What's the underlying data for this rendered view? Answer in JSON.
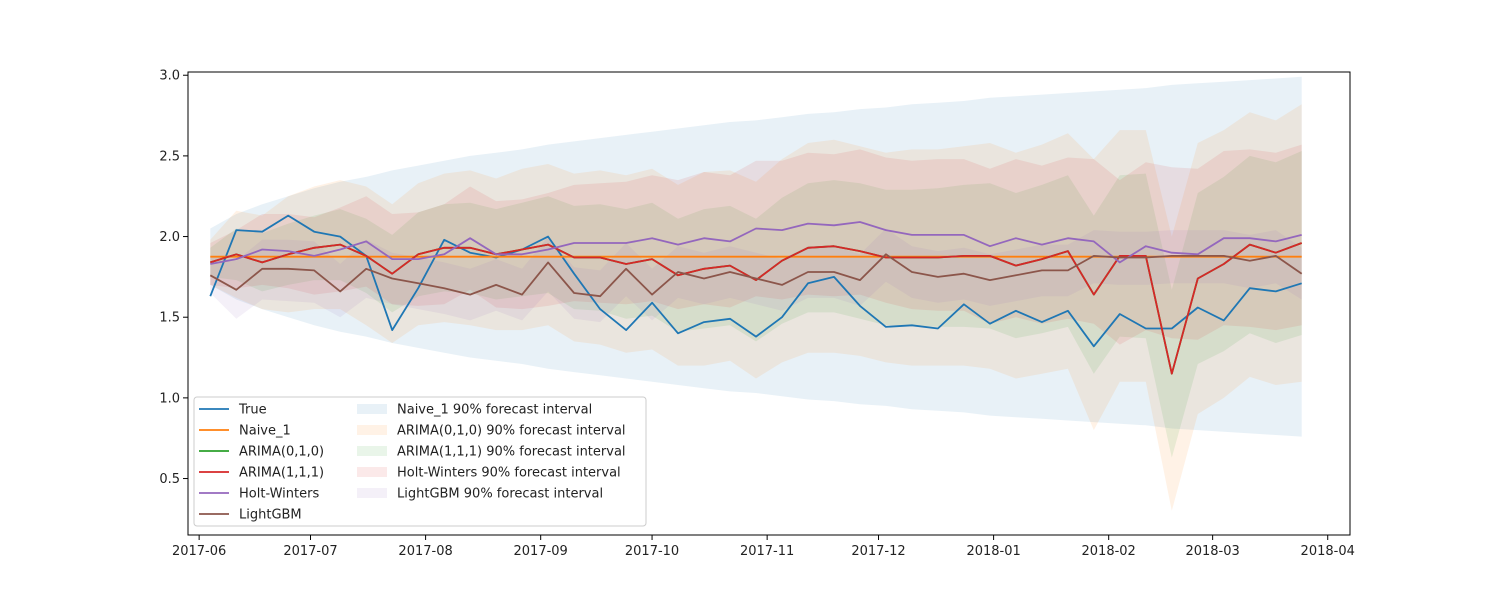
{
  "chart_data": {
    "type": "line",
    "title": "",
    "xlabel": "",
    "ylabel": "",
    "xlim": [
      "2017-05-29",
      "2018-04-07"
    ],
    "ylim": [
      0.15,
      3.02
    ],
    "grid": false,
    "legend_placement": "lower-left",
    "x": [
      "2017-06-04",
      "2017-06-11",
      "2017-06-18",
      "2017-06-25",
      "2017-07-02",
      "2017-07-09",
      "2017-07-16",
      "2017-07-23",
      "2017-07-30",
      "2017-08-06",
      "2017-08-13",
      "2017-08-20",
      "2017-08-27",
      "2017-09-03",
      "2017-09-10",
      "2017-09-17",
      "2017-09-24",
      "2017-10-01",
      "2017-10-08",
      "2017-10-15",
      "2017-10-22",
      "2017-10-29",
      "2017-11-05",
      "2017-11-12",
      "2017-11-19",
      "2017-11-26",
      "2017-12-03",
      "2017-12-10",
      "2017-12-17",
      "2017-12-24",
      "2017-12-31",
      "2018-01-07",
      "2018-01-14",
      "2018-01-21",
      "2018-01-28",
      "2018-02-04",
      "2018-02-11",
      "2018-02-18",
      "2018-02-25",
      "2018-03-04",
      "2018-03-11",
      "2018-03-18",
      "2018-03-25"
    ],
    "x_ticks": [
      "2017-06",
      "2017-07",
      "2017-08",
      "2017-09",
      "2017-10",
      "2017-11",
      "2017-12",
      "2018-01",
      "2018-02",
      "2018-03",
      "2018-04"
    ],
    "y_ticks": [
      "0.5",
      "1.0",
      "1.5",
      "2.0",
      "2.5",
      "3.0"
    ],
    "series": [
      {
        "name": "True",
        "color": "#1f77b4",
        "values": [
          1.63,
          2.04,
          2.03,
          2.13,
          2.03,
          2.0,
          1.88,
          1.42,
          1.68,
          1.98,
          1.9,
          1.87,
          1.92,
          2.0,
          1.77,
          1.55,
          1.42,
          1.59,
          1.4,
          1.47,
          1.49,
          1.38,
          1.5,
          1.71,
          1.75,
          1.57,
          1.44,
          1.45,
          1.43,
          1.58,
          1.46,
          1.54,
          1.47,
          1.54,
          1.32,
          1.52,
          1.43,
          1.43,
          1.56,
          1.48,
          1.68,
          1.66,
          1.71
        ]
      },
      {
        "name": "Naive_1",
        "color": "#ff7f0e",
        "values": [
          1.875,
          1.875,
          1.875,
          1.875,
          1.875,
          1.875,
          1.875,
          1.875,
          1.875,
          1.875,
          1.875,
          1.875,
          1.875,
          1.875,
          1.875,
          1.875,
          1.875,
          1.875,
          1.875,
          1.875,
          1.875,
          1.875,
          1.875,
          1.875,
          1.875,
          1.875,
          1.875,
          1.875,
          1.875,
          1.875,
          1.875,
          1.875,
          1.875,
          1.875,
          1.875,
          1.875,
          1.875,
          1.875,
          1.875,
          1.875,
          1.875,
          1.875,
          1.875
        ]
      },
      {
        "name": "ARIMA(0,1,0)",
        "color": "#2ca02c",
        "values": [
          1.84,
          1.89,
          1.84,
          1.89,
          1.93,
          1.95,
          1.88,
          1.77,
          1.89,
          1.93,
          1.93,
          1.89,
          1.92,
          1.95,
          1.87,
          1.87,
          1.83,
          1.86,
          1.76,
          1.8,
          1.82,
          1.73,
          1.85,
          1.93,
          1.94,
          1.91,
          1.87,
          1.87,
          1.87,
          1.88,
          1.88,
          1.82,
          1.86,
          1.91,
          1.64,
          1.88,
          1.88,
          1.15,
          1.74,
          1.83,
          1.95,
          1.9,
          1.96
        ]
      },
      {
        "name": "ARIMA(1,1,1)",
        "color": "#d62728",
        "values": [
          1.84,
          1.89,
          1.84,
          1.89,
          1.93,
          1.95,
          1.88,
          1.77,
          1.89,
          1.93,
          1.93,
          1.89,
          1.92,
          1.95,
          1.87,
          1.87,
          1.83,
          1.86,
          1.76,
          1.8,
          1.82,
          1.73,
          1.85,
          1.93,
          1.94,
          1.91,
          1.87,
          1.87,
          1.87,
          1.88,
          1.88,
          1.82,
          1.86,
          1.91,
          1.64,
          1.88,
          1.88,
          1.15,
          1.74,
          1.83,
          1.95,
          1.9,
          1.96
        ]
      },
      {
        "name": "Holt-Winters",
        "color": "#9467bd",
        "values": [
          1.83,
          1.86,
          1.92,
          1.91,
          1.88,
          1.92,
          1.97,
          1.86,
          1.86,
          1.89,
          1.99,
          1.89,
          1.89,
          1.92,
          1.96,
          1.96,
          1.96,
          1.99,
          1.95,
          1.99,
          1.97,
          2.05,
          2.04,
          2.08,
          2.07,
          2.09,
          2.04,
          2.01,
          2.01,
          2.01,
          1.94,
          1.99,
          1.95,
          1.99,
          1.97,
          1.84,
          1.94,
          1.9,
          1.89,
          1.99,
          1.99,
          1.97,
          2.01
        ]
      },
      {
        "name": "LightGBM",
        "color": "#8c564b",
        "values": [
          1.76,
          1.67,
          1.8,
          1.8,
          1.79,
          1.66,
          1.8,
          1.74,
          1.71,
          1.68,
          1.64,
          1.7,
          1.64,
          1.84,
          1.65,
          1.63,
          1.8,
          1.64,
          1.78,
          1.74,
          1.78,
          1.74,
          1.7,
          1.78,
          1.78,
          1.73,
          1.89,
          1.78,
          1.75,
          1.77,
          1.73,
          1.76,
          1.79,
          1.79,
          1.88,
          1.87,
          1.87,
          1.88,
          1.88,
          1.88,
          1.85,
          1.88,
          1.77
        ]
      }
    ],
    "intervals": [
      {
        "name": "Naive_1 90% forecast interval",
        "color": "#1f77b4",
        "lower": [
          1.7,
          1.61,
          1.55,
          1.5,
          1.45,
          1.41,
          1.38,
          1.34,
          1.31,
          1.28,
          1.25,
          1.23,
          1.21,
          1.18,
          1.16,
          1.14,
          1.12,
          1.1,
          1.08,
          1.06,
          1.04,
          1.03,
          1.01,
          0.99,
          0.98,
          0.96,
          0.95,
          0.93,
          0.92,
          0.91,
          0.89,
          0.88,
          0.87,
          0.86,
          0.85,
          0.84,
          0.83,
          0.81,
          0.8,
          0.79,
          0.78,
          0.77,
          0.76
        ],
        "upper": [
          2.05,
          2.14,
          2.2,
          2.25,
          2.3,
          2.34,
          2.37,
          2.41,
          2.44,
          2.47,
          2.5,
          2.52,
          2.54,
          2.57,
          2.59,
          2.61,
          2.63,
          2.65,
          2.67,
          2.69,
          2.71,
          2.72,
          2.74,
          2.76,
          2.77,
          2.79,
          2.8,
          2.82,
          2.83,
          2.84,
          2.86,
          2.87,
          2.88,
          2.89,
          2.9,
          2.91,
          2.92,
          2.94,
          2.95,
          2.96,
          2.97,
          2.98,
          2.99
        ]
      },
      {
        "name": "ARIMA(0,1,0) 90% forecast interval",
        "color": "#ff7f0e",
        "lower": [
          1.7,
          1.62,
          1.55,
          1.53,
          1.55,
          1.55,
          1.45,
          1.34,
          1.45,
          1.47,
          1.45,
          1.42,
          1.42,
          1.45,
          1.35,
          1.33,
          1.28,
          1.3,
          1.2,
          1.2,
          1.23,
          1.12,
          1.22,
          1.28,
          1.28,
          1.26,
          1.22,
          1.2,
          1.2,
          1.2,
          1.18,
          1.12,
          1.15,
          1.18,
          0.8,
          1.1,
          1.1,
          0.3,
          0.9,
          1.0,
          1.13,
          1.08,
          1.1
        ],
        "upper": [
          1.98,
          2.16,
          2.13,
          2.25,
          2.31,
          2.35,
          2.31,
          2.2,
          2.33,
          2.39,
          2.41,
          2.36,
          2.42,
          2.45,
          2.39,
          2.41,
          2.38,
          2.42,
          2.32,
          2.4,
          2.41,
          2.34,
          2.48,
          2.58,
          2.6,
          2.56,
          2.52,
          2.54,
          2.54,
          2.56,
          2.58,
          2.52,
          2.57,
          2.64,
          2.48,
          2.66,
          2.66,
          2.0,
          2.58,
          2.66,
          2.77,
          2.72,
          2.82
        ]
      },
      {
        "name": "ARIMA(1,1,1) 90% forecast interval",
        "color": "#2ca02c",
        "lower": [
          1.75,
          1.73,
          1.66,
          1.7,
          1.73,
          1.73,
          1.65,
          1.53,
          1.63,
          1.66,
          1.65,
          1.61,
          1.63,
          1.65,
          1.55,
          1.54,
          1.49,
          1.51,
          1.41,
          1.43,
          1.45,
          1.35,
          1.46,
          1.53,
          1.53,
          1.49,
          1.45,
          1.45,
          1.44,
          1.44,
          1.43,
          1.37,
          1.4,
          1.44,
          1.15,
          1.38,
          1.37,
          0.63,
          1.21,
          1.29,
          1.4,
          1.34,
          1.39
        ],
        "upper": [
          1.93,
          2.05,
          2.02,
          2.08,
          2.13,
          2.17,
          2.11,
          2.01,
          2.15,
          2.2,
          2.21,
          2.17,
          2.21,
          2.25,
          2.19,
          2.2,
          2.17,
          2.21,
          2.11,
          2.17,
          2.19,
          2.11,
          2.24,
          2.33,
          2.35,
          2.33,
          2.29,
          2.29,
          2.3,
          2.32,
          2.33,
          2.27,
          2.32,
          2.38,
          2.13,
          2.38,
          2.39,
          1.67,
          2.27,
          2.37,
          2.5,
          2.46,
          2.53
        ]
      },
      {
        "name": "Holt-Winters 90% forecast interval",
        "color": "#d62728",
        "lower": [
          1.7,
          1.68,
          1.7,
          1.68,
          1.64,
          1.66,
          1.69,
          1.58,
          1.57,
          1.58,
          1.67,
          1.56,
          1.55,
          1.57,
          1.6,
          1.59,
          1.58,
          1.6,
          1.55,
          1.58,
          1.56,
          1.63,
          1.61,
          1.64,
          1.63,
          1.64,
          1.59,
          1.55,
          1.54,
          1.54,
          1.46,
          1.5,
          1.46,
          1.49,
          1.46,
          1.33,
          1.42,
          1.37,
          1.36,
          1.45,
          1.44,
          1.42,
          1.45
        ],
        "upper": [
          1.96,
          2.04,
          2.14,
          2.14,
          2.12,
          2.18,
          2.25,
          2.14,
          2.15,
          2.2,
          2.31,
          2.22,
          2.23,
          2.27,
          2.32,
          2.33,
          2.34,
          2.38,
          2.35,
          2.4,
          2.38,
          2.47,
          2.47,
          2.52,
          2.51,
          2.54,
          2.49,
          2.47,
          2.48,
          2.48,
          2.42,
          2.48,
          2.44,
          2.49,
          2.48,
          2.35,
          2.46,
          2.43,
          2.42,
          2.53,
          2.54,
          2.52,
          2.57
        ]
      },
      {
        "name": "LightGBM 90% forecast interval",
        "color": "#9467bd",
        "lower": [
          1.65,
          1.49,
          1.61,
          1.6,
          1.59,
          1.5,
          1.62,
          1.58,
          1.55,
          1.52,
          1.48,
          1.54,
          1.48,
          1.66,
          1.49,
          1.47,
          1.63,
          1.48,
          1.62,
          1.58,
          1.62,
          1.58,
          1.54,
          1.62,
          1.62,
          1.57,
          1.72,
          1.62,
          1.59,
          1.61,
          1.57,
          1.6,
          1.63,
          1.63,
          1.71,
          1.7,
          1.7,
          1.71,
          1.71,
          1.71,
          1.68,
          1.71,
          1.61
        ],
        "upper": [
          1.88,
          1.85,
          1.98,
          1.98,
          1.97,
          1.83,
          1.98,
          1.9,
          1.87,
          1.84,
          1.8,
          1.86,
          1.8,
          2.0,
          1.81,
          1.79,
          1.96,
          1.8,
          1.94,
          1.9,
          1.94,
          1.9,
          1.86,
          1.94,
          1.94,
          1.89,
          2.05,
          1.94,
          1.91,
          1.93,
          1.89,
          1.92,
          1.95,
          1.95,
          2.04,
          2.03,
          2.03,
          2.04,
          2.04,
          2.04,
          2.01,
          2.04,
          1.93
        ]
      }
    ]
  }
}
